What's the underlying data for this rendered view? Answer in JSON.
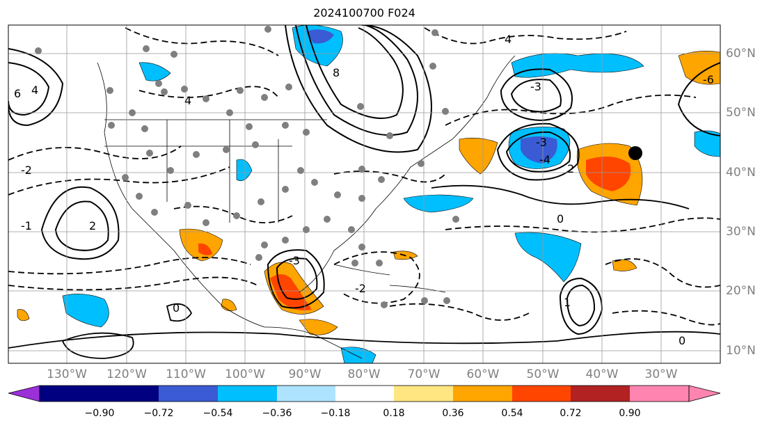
{
  "title": "2024100700 F024",
  "lon_labels": [
    "130°W",
    "120°W",
    "110°W",
    "100°W",
    "90°W",
    "80°W",
    "70°W",
    "60°W",
    "50°W",
    "40°W",
    "30°W"
  ],
  "lat_labels": [
    "60°N",
    "50°N",
    "40°N",
    "30°N",
    "20°N",
    "10°N"
  ],
  "colorbar": {
    "ticks": [
      "−0.90",
      "−0.72",
      "−0.54",
      "−0.36",
      "−0.18",
      "0.18",
      "0.36",
      "0.54",
      "0.72",
      "0.90"
    ],
    "colors": [
      "#9b30d9",
      "#000080",
      "#3a5bd4",
      "#00bfff",
      "#aee3ff",
      "#ffffff",
      "#ffe680",
      "#ffa500",
      "#ff4500",
      "#b22222",
      "#ff85b0"
    ]
  },
  "contour_labels": [
    "4",
    "6",
    "8",
    "-3",
    "-4",
    "-2",
    "2",
    "-1",
    "0",
    "1",
    "-6"
  ],
  "marker": "filled-black-dot",
  "stations": "gray-dots"
}
